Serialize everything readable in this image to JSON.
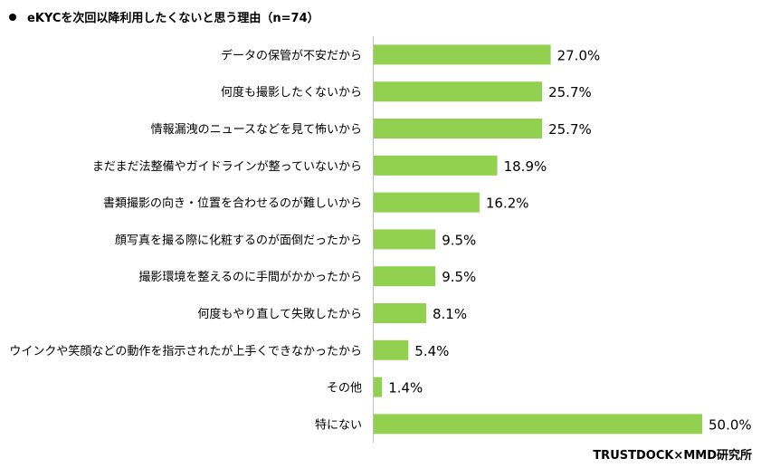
{
  "page": {
    "title": "eKYCを次回以降利用したくないと思う理由（n=74）",
    "source": "TRUSTDOCK×MMD研究所"
  },
  "colors": {
    "bar": "#92D050",
    "axis": "#BFBFBF",
    "text": "#000000"
  },
  "chart_data": {
    "type": "bar",
    "orientation": "horizontal",
    "title": "eKYCを次回以降利用したくないと思う理由（n=74）",
    "categories": [
      "データの保管が不安だから",
      "何度も撮影したくないから",
      "情報漏洩のニュースなどを見て怖いから",
      "まだまだ法整備やガイドラインが整っていないから",
      "書類撮影の向き・位置を合わせるのが難しいから",
      "顔写真を撮る際に化粧するのが面倒だったから",
      "撮影環境を整えるのに手間がかかったから",
      "何度もやり直して失敗したから",
      "ウインクや笑顔などの動作を指示されたが上手くできなかったから",
      "その他",
      "特にない"
    ],
    "values": [
      27.0,
      25.7,
      25.7,
      18.9,
      16.2,
      9.5,
      9.5,
      8.1,
      5.4,
      1.4,
      50.0
    ],
    "value_labels": [
      "27.0%",
      "25.7%",
      "25.7%",
      "18.9%",
      "16.2%",
      "9.5%",
      "9.5%",
      "8.1%",
      "5.4%",
      "1.4%",
      "50.0%"
    ],
    "unit": "%",
    "xlim": [
      0,
      50
    ],
    "grid": false,
    "legend": "none"
  }
}
